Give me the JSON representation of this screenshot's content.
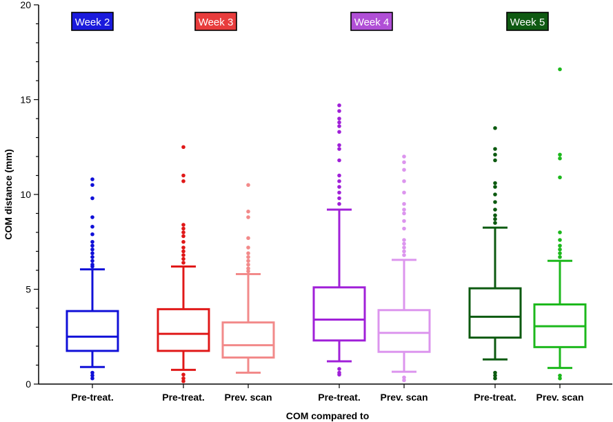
{
  "chart_data": {
    "type": "boxplot",
    "title": "",
    "xlabel": "COM compared to",
    "ylabel": "COM distance (mm)",
    "ylim": [
      0,
      20
    ],
    "yticks": [
      0,
      5,
      10,
      15,
      20
    ],
    "grid": false,
    "groups": [
      {
        "label": "Week 2",
        "color": "#1a1adc"
      },
      {
        "label": "Week 3",
        "color": "#e83c3c"
      },
      {
        "label": "Week 4",
        "color": "#b04fd6"
      },
      {
        "label": "Week 5",
        "color": "#0f5a12"
      }
    ],
    "boxes": [
      {
        "group": 0,
        "category": "Pre-treat.",
        "color": "#1010d8",
        "whisker_low": 0.9,
        "q1": 1.75,
        "median": 2.5,
        "q3": 3.85,
        "whisker_high": 6.05,
        "outliers_high": [
          6.2,
          6.3,
          6.5,
          6.7,
          6.9,
          7.1,
          7.3,
          7.5,
          7.9,
          8.3,
          8.8,
          9.8,
          10.5,
          10.8
        ],
        "outliers_low": [
          0.3,
          0.45,
          0.6
        ]
      },
      {
        "group": 1,
        "category": "Pre-treat.",
        "color": "#e01818",
        "whisker_low": 0.75,
        "q1": 1.75,
        "median": 2.65,
        "q3": 3.95,
        "whisker_high": 6.2,
        "outliers_high": [
          6.4,
          6.6,
          6.8,
          7.0,
          7.2,
          7.5,
          7.8,
          8.0,
          8.2,
          8.4,
          10.7,
          11.0,
          12.5
        ],
        "outliers_low": [
          0.15,
          0.3,
          0.5
        ]
      },
      {
        "group": 1,
        "category": "Prev. scan",
        "color": "#f28a8a",
        "whisker_low": 0.6,
        "q1": 1.4,
        "median": 2.05,
        "q3": 3.25,
        "whisker_high": 5.8,
        "outliers_high": [
          5.95,
          6.1,
          6.3,
          6.5,
          6.7,
          6.9,
          7.2,
          7.7,
          8.8,
          9.1,
          10.5
        ],
        "outliers_low": []
      },
      {
        "group": 2,
        "category": "Pre-treat.",
        "color": "#a020d8",
        "whisker_low": 1.2,
        "q1": 2.3,
        "median": 3.4,
        "q3": 5.1,
        "whisker_high": 9.2,
        "outliers_high": [
          9.5,
          9.8,
          10.1,
          10.4,
          10.7,
          11.0,
          11.8,
          12.4,
          12.6,
          13.3,
          13.6,
          13.8,
          14.0,
          14.4,
          14.7
        ],
        "outliers_low": [
          0.5,
          0.6,
          0.8
        ]
      },
      {
        "group": 2,
        "category": "Prev. scan",
        "color": "#dc95ee",
        "whisker_low": 0.65,
        "q1": 1.7,
        "median": 2.7,
        "q3": 3.9,
        "whisker_high": 6.55,
        "outliers_high": [
          6.8,
          7.0,
          7.2,
          7.4,
          7.6,
          8.2,
          8.6,
          9.0,
          9.2,
          9.5,
          10.1,
          10.7,
          11.3,
          11.7,
          12.0
        ],
        "outliers_low": [
          0.2,
          0.35
        ]
      },
      {
        "group": 3,
        "category": "Pre-treat.",
        "color": "#0c5a10",
        "whisker_low": 1.3,
        "q1": 2.45,
        "median": 3.55,
        "q3": 5.05,
        "whisker_high": 8.25,
        "outliers_high": [
          8.5,
          8.7,
          8.9,
          9.2,
          9.6,
          10.0,
          10.4,
          10.6,
          11.8,
          12.1,
          12.4,
          13.5
        ],
        "outliers_low": [
          0.3,
          0.45,
          0.6
        ]
      },
      {
        "group": 3,
        "category": "Prev. scan",
        "color": "#1cb81c",
        "whisker_low": 0.85,
        "q1": 1.95,
        "median": 3.05,
        "q3": 4.2,
        "whisker_high": 6.5,
        "outliers_high": [
          6.7,
          6.9,
          7.1,
          7.3,
          7.6,
          8.0,
          10.9,
          11.9,
          12.1,
          16.6
        ],
        "outliers_low": [
          0.3,
          0.45
        ]
      }
    ]
  }
}
